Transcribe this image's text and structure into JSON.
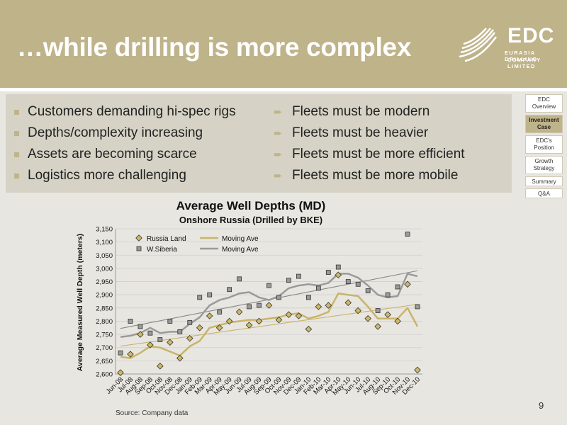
{
  "slide": {
    "title": "…while drilling is more complex",
    "page_number": "9",
    "source": "Source: Company data"
  },
  "logo": {
    "name": "EDC",
    "line1": "EURASIA DRILLING",
    "line2": "COMPANY LIMITED"
  },
  "bullets": {
    "left": [
      "Customers demanding hi-spec rigs",
      "Depths/complexity increasing",
      "Assets are becoming scarce",
      "Logistics more challenging"
    ],
    "right": [
      "Fleets must be modern",
      "Fleets must be heavier",
      "Fleets must be more efficient",
      "Fleets must be more mobile"
    ]
  },
  "nav": {
    "items": [
      "EDC Overview",
      "Investment Case",
      "EDC's Position",
      "Growth Strategy",
      "Summary",
      "Q&A"
    ],
    "active_index": 1
  },
  "colors": {
    "header": "#bfb38a",
    "russia_land": "#cdb86a",
    "russia_ma": "#c8b46a",
    "wsib": "#999999",
    "wsib_ma": "#9a9a9a",
    "trend": "#888888"
  },
  "chart_data": {
    "type": "line",
    "title": "Average Well Depths (MD)",
    "subtitle": "Onshore Russia (Drilled by BKE)",
    "ylabel": "Average Measured Well Depth (meters)",
    "xlabel": "",
    "ylim": [
      2600,
      3150
    ],
    "yticks": [
      2600,
      2650,
      2700,
      2750,
      2800,
      2850,
      2900,
      2950,
      3000,
      3050,
      3100,
      3150
    ],
    "grid": true,
    "legend_position": "top-left",
    "categories": [
      "Jun-08",
      "Jul-08",
      "Aug-08",
      "Sep-08",
      "Oct-08",
      "Nov-08",
      "Dec-08",
      "Jan-09",
      "Feb-09",
      "Mar-09",
      "Apr-09",
      "May-09",
      "Jun-09",
      "Jul-09",
      "Aug-09",
      "Sep-09",
      "Oct-09",
      "Nov-09",
      "Dec-09",
      "Jan-10",
      "Feb-10",
      "Mar-10",
      "Apr-10",
      "May-10",
      "Jun-10",
      "Jul-10",
      "Aug-10",
      "Sep-10",
      "Oct-10",
      "Nov-10",
      "Dec-10"
    ],
    "series": [
      {
        "name": "Russia Land",
        "kind": "scatter",
        "marker": "diamond",
        "values": [
          2605,
          2675,
          2750,
          2710,
          2630,
          2720,
          2660,
          2735,
          2775,
          2820,
          2775,
          2800,
          2835,
          2785,
          2800,
          2860,
          2805,
          2825,
          2820,
          2770,
          2855,
          2860,
          2975,
          2870,
          2840,
          2810,
          2780,
          2825,
          2800,
          2940,
          2615
        ]
      },
      {
        "name": "Moving Ave",
        "kind": "line",
        "values": [
          2665,
          2660,
          2680,
          2705,
          2700,
          2685,
          2670,
          2705,
          2725,
          2775,
          2785,
          2795,
          2800,
          2805,
          2805,
          2810,
          2815,
          2825,
          2830,
          2810,
          2820,
          2835,
          2905,
          2900,
          2895,
          2855,
          2810,
          2810,
          2810,
          2850,
          2780
        ]
      },
      {
        "name": "W.Siberia",
        "kind": "scatter",
        "marker": "square",
        "values": [
          2680,
          2800,
          2780,
          2755,
          2730,
          2800,
          2760,
          2795,
          2890,
          2900,
          2835,
          2920,
          2960,
          2855,
          2860,
          2935,
          2890,
          2955,
          2970,
          2890,
          2925,
          2985,
          3005,
          2950,
          2940,
          2915,
          2840,
          2900,
          2930,
          3130,
          2855
        ]
      },
      {
        "name": "Moving Ave",
        "kind": "line",
        "values": [
          2740,
          2745,
          2755,
          2775,
          2755,
          2760,
          2760,
          2790,
          2815,
          2860,
          2880,
          2890,
          2905,
          2910,
          2890,
          2880,
          2895,
          2925,
          2935,
          2940,
          2935,
          2945,
          2980,
          2980,
          2965,
          2935,
          2900,
          2890,
          2895,
          2980,
          2970
        ]
      }
    ]
  }
}
